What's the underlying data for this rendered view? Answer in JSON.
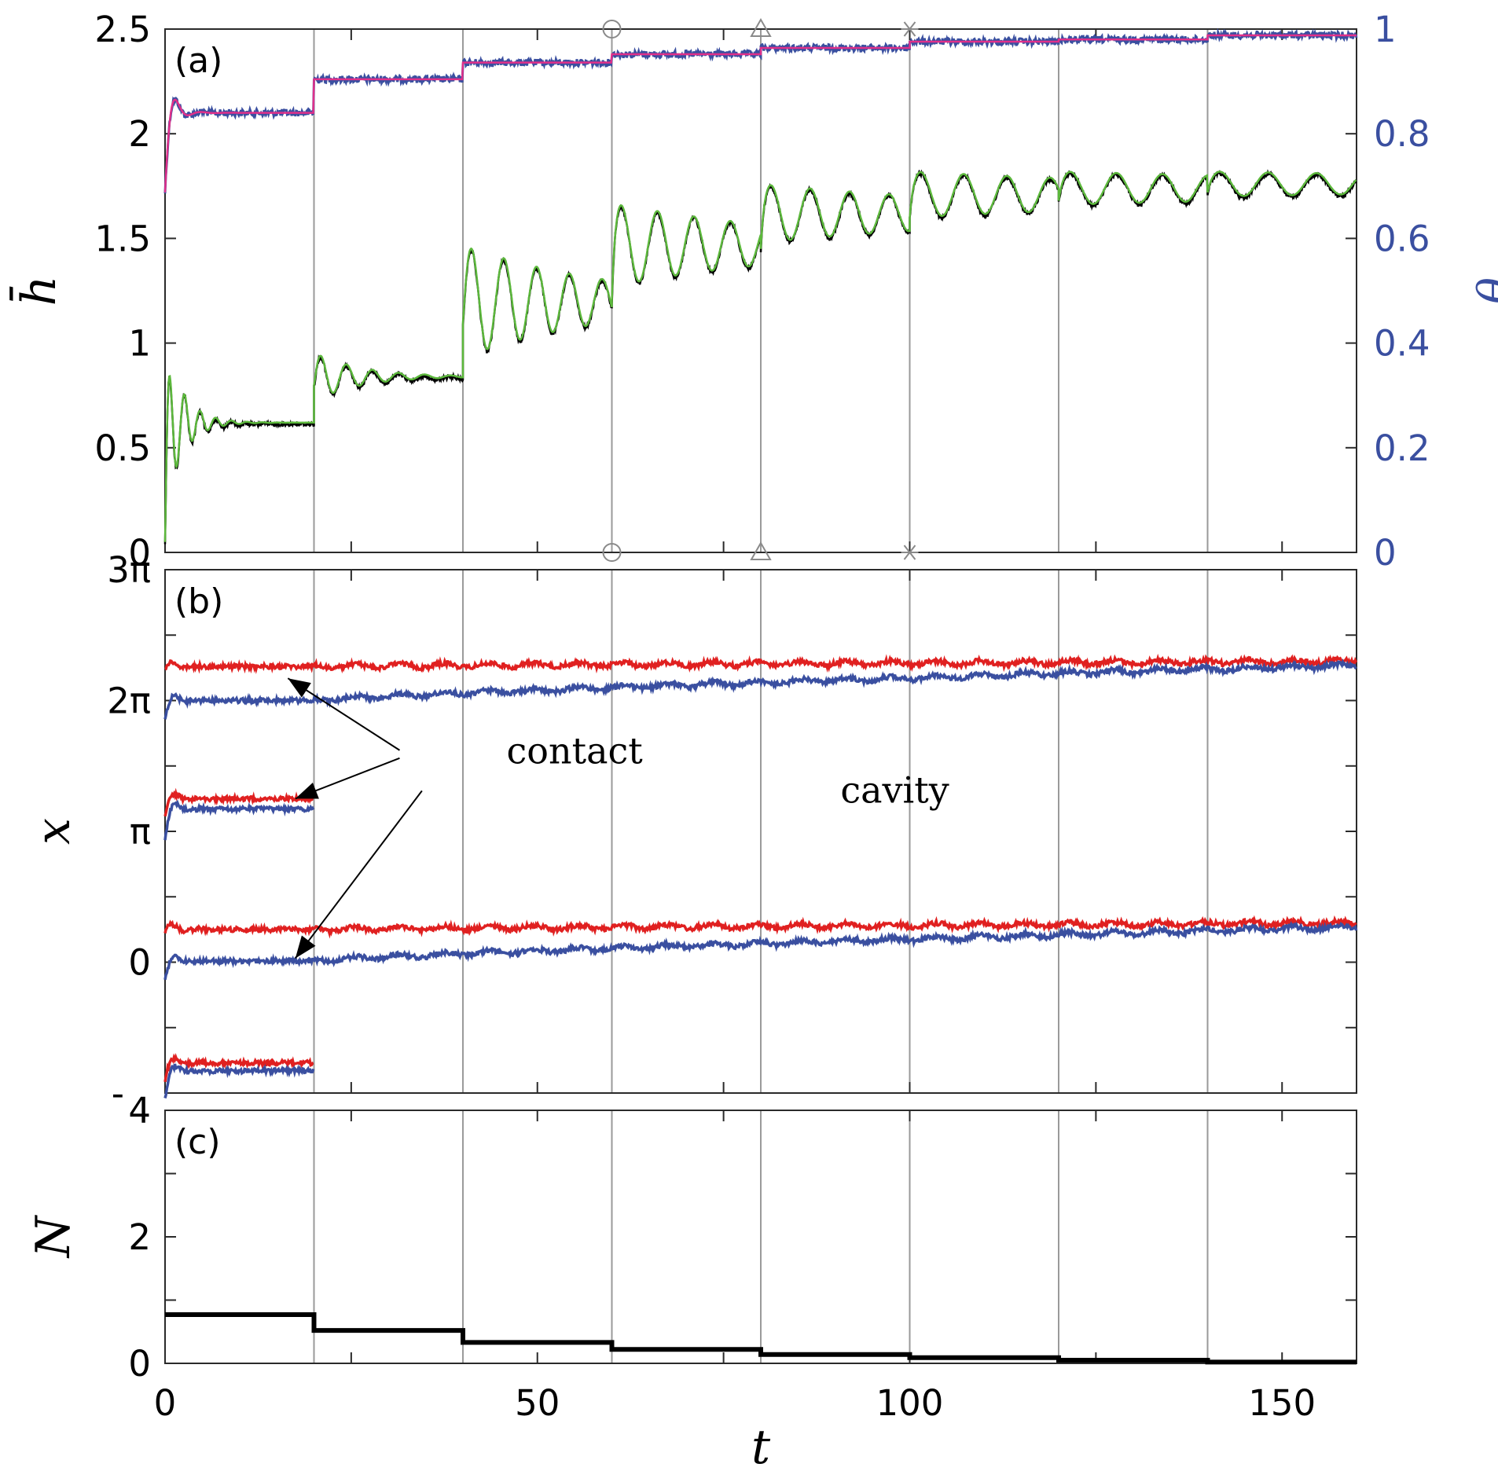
{
  "chart_data": [
    {
      "panel": "(a)",
      "type": "line",
      "xlabel": "",
      "ylabel": "h̄",
      "ylabel_right": "θ",
      "xlim": [
        0,
        160
      ],
      "ylim": [
        0,
        2.5
      ],
      "ylim_right": [
        0,
        1
      ],
      "yticks": [
        0,
        0.5,
        1,
        1.5,
        2,
        2.5
      ],
      "ytick_labels": [
        "0",
        "0.5",
        "1",
        "1.5",
        "2",
        "2.5"
      ],
      "yticks_right": [
        0,
        0.2,
        0.4,
        0.6,
        0.8,
        1
      ],
      "ytick_labels_right": [
        "0",
        "0.2",
        "0.4",
        "0.6",
        "0.8",
        "1"
      ],
      "vlines": [
        20,
        40,
        60,
        80,
        100,
        120,
        140
      ],
      "markers": [
        {
          "x": 60,
          "symbol": "circle"
        },
        {
          "x": 80,
          "symbol": "triangle"
        },
        {
          "x": 100,
          "symbol": "asterisk"
        }
      ],
      "series": [
        {
          "axis": "left",
          "color": "#e0308a",
          "noise_color": "#3a4fa0",
          "segments": [
            {
              "t0": 0,
              "t1": 20,
              "level": 2.1,
              "start": 1.72,
              "overshoot": 0.12
            },
            {
              "t0": 20,
              "t1": 40,
              "level": 2.26
            },
            {
              "t0": 40,
              "t1": 60,
              "level": 2.34
            },
            {
              "t0": 60,
              "t1": 80,
              "level": 2.38
            },
            {
              "t0": 80,
              "t1": 100,
              "level": 2.41
            },
            {
              "t0": 100,
              "t1": 120,
              "level": 2.44
            },
            {
              "t0": 120,
              "t1": 140,
              "level": 2.45
            },
            {
              "t0": 140,
              "t1": 160,
              "level": 2.47
            }
          ]
        },
        {
          "axis": "left",
          "color": "#5cb83c",
          "shadow_color": "#000000",
          "segments": [
            {
              "t0": 0,
              "t1": 20,
              "start": 0.05,
              "level": 0.62,
              "amp": 0.4,
              "period": 2.1,
              "decay": 2.4
            },
            {
              "t0": 20,
              "t1": 40,
              "start": 0.8,
              "level": 0.84,
              "amp": 0.12,
              "period": 3.5,
              "decay": 6
            },
            {
              "t0": 40,
              "t1": 60,
              "start": 1.1,
              "level": 1.2,
              "amp": 0.27,
              "period": 4.4,
              "decay": 20
            },
            {
              "t0": 60,
              "t1": 80,
              "start": 1.2,
              "level": 1.47,
              "amp": 0.2,
              "period": 4.9,
              "decay": 28
            },
            {
              "t0": 80,
              "t1": 100,
              "start": 1.45,
              "level": 1.62,
              "amp": 0.14,
              "period": 5.3,
              "decay": 40
            },
            {
              "t0": 100,
              "t1": 120,
              "start": 1.6,
              "level": 1.71,
              "amp": 0.11,
              "period": 5.8,
              "decay": 60
            },
            {
              "t0": 120,
              "t1": 140,
              "start": 1.68,
              "level": 1.74,
              "amp": 0.08,
              "period": 6.2,
              "decay": 80
            },
            {
              "t0": 140,
              "t1": 160,
              "start": 1.72,
              "level": 1.76,
              "amp": 0.06,
              "period": 6.5,
              "decay": 100
            }
          ]
        }
      ]
    },
    {
      "panel": "(b)",
      "type": "line",
      "xlabel": "",
      "ylabel": "x",
      "xlim": [
        0,
        160
      ],
      "ylim": [
        -1,
        3
      ],
      "ylim_unit": "pi",
      "yticks": [
        0,
        1,
        2,
        3
      ],
      "ytick_labels": [
        "0",
        "π",
        "2π",
        "3π"
      ],
      "clipped_tick_label": "-",
      "vlines": [
        20,
        40,
        60,
        80,
        100,
        120,
        140
      ],
      "annotations": [
        {
          "text": "contact",
          "x": 55,
          "y": 1.52
        },
        {
          "text": "cavity",
          "x": 98,
          "y": 1.22
        }
      ],
      "arrows": [
        {
          "from": [
            31.5,
            1.62
          ],
          "to": [
            16.5,
            2.17
          ]
        },
        {
          "from": [
            31.5,
            1.56
          ],
          "to": [
            17.5,
            1.25
          ]
        },
        {
          "from": [
            34.5,
            1.31
          ],
          "to": [
            17.5,
            0.03
          ]
        }
      ],
      "series": [
        {
          "name": "",
          "color": "#e02020",
          "t0": 0,
          "t1": 160,
          "start": 2.23,
          "end": 2.3
        },
        {
          "name": "",
          "color": "#3a4fa0",
          "t0": 0,
          "t1": 160,
          "start": 1.85,
          "level": 2.0,
          "end": 2.27
        },
        {
          "name": "",
          "color": "#e02020",
          "t0": 0,
          "t1": 20.5,
          "start": 1.1,
          "level": 1.25
        },
        {
          "name": "",
          "color": "#3a4fa0",
          "t0": 0,
          "t1": 20.5,
          "start": 0.95,
          "level": 1.17
        },
        {
          "name": "",
          "color": "#e02020",
          "t0": 0,
          "t1": 160,
          "start": 0.22,
          "end": 0.3
        },
        {
          "name": "",
          "color": "#3a4fa0",
          "t0": 0,
          "t1": 160,
          "start": -0.15,
          "level": 0.01,
          "end": 0.27
        },
        {
          "name": "",
          "color": "#e02020",
          "t0": 0,
          "t1": 20.5,
          "start": -0.9,
          "level": -0.77
        },
        {
          "name": "",
          "color": "#3a4fa0",
          "t0": 0,
          "t1": 20.5,
          "start": -1.05,
          "level": -0.83
        }
      ]
    },
    {
      "panel": "(c)",
      "type": "line",
      "xlabel": "t",
      "ylabel": "N",
      "xlim": [
        0,
        160
      ],
      "ylim": [
        0,
        4
      ],
      "yticks": [
        0,
        2,
        4
      ],
      "ytick_labels": [
        "0",
        "2",
        "4"
      ],
      "xticks": [
        0,
        50,
        100,
        150
      ],
      "xtick_labels": [
        "0",
        "50",
        "100",
        "150"
      ],
      "vlines": [
        20,
        40,
        60,
        80,
        100,
        120,
        140
      ],
      "series": [
        {
          "color": "#000000",
          "steps": [
            {
              "t0": 0,
              "t1": 20,
              "value": 0.77
            },
            {
              "t0": 20,
              "t1": 40,
              "value": 0.52
            },
            {
              "t0": 40,
              "t1": 60,
              "value": 0.33
            },
            {
              "t0": 60,
              "t1": 80,
              "value": 0.22
            },
            {
              "t0": 80,
              "t1": 100,
              "value": 0.14
            },
            {
              "t0": 100,
              "t1": 120,
              "value": 0.09
            },
            {
              "t0": 120,
              "t1": 140,
              "value": 0.05
            },
            {
              "t0": 140,
              "t1": 160,
              "value": 0.02
            }
          ]
        }
      ]
    }
  ]
}
